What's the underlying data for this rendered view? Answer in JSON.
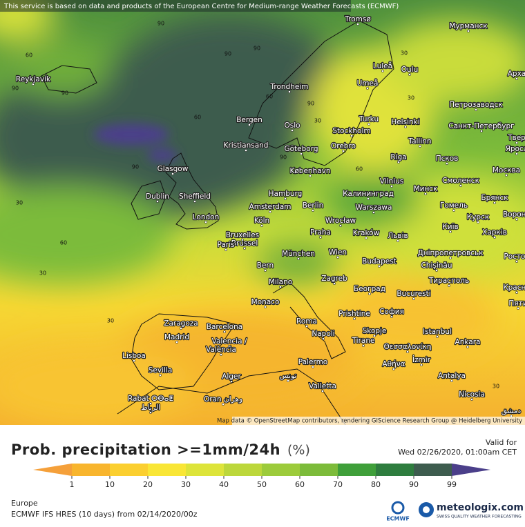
{
  "header": {
    "notice": "This service is based on data and products of the European Centre for Medium-range Weather Forecasts (ECMWF)"
  },
  "map": {
    "attribution": "Map data © OpenStreetMap contributors, rendering GIScience Research Group @ Heidelberg University",
    "cities": [
      "Reykjavík",
      "Tromsø",
      "Мурманск",
      "Luleå",
      "Oulu",
      "Арха",
      "Trondheim",
      "Umeå",
      "Bergen",
      "Oslo",
      "Turku",
      "Helsinki",
      "Петрозаводск",
      "Stockholm",
      "Санкт-Петербург",
      "Kristiansand",
      "Göteborg",
      "Orebro",
      "Tallinn",
      "Твер",
      "Яросл",
      "Glasgow",
      "København",
      "Riga",
      "Псков",
      "Москва",
      "Vilnius",
      "Минск",
      "Смоленск",
      "Dublin",
      "Sheffield",
      "Hamburg",
      "Калининград",
      "Брянск",
      "Amsterdam",
      "Berlin",
      "Warszawa",
      "Гомель",
      "Вороне",
      "London",
      "Köln",
      "Wrocław",
      "Київ",
      "Курск",
      "Bruxelles",
      "Brussel",
      "Praha",
      "Kraków",
      "Львів",
      "Харків",
      "Paris",
      "München",
      "Wien",
      "Дніпропетровськ",
      "Ростов",
      "Bern",
      "Budapest",
      "Chişinău",
      "Milano",
      "Zagreb",
      "Тирасполь",
      "Красно",
      "Београд",
      "Bucuresti",
      "Monaco",
      "Пяти",
      "Prishtine",
      "София",
      "Roma",
      "Zaragoza",
      "Barcelona",
      "Skopje",
      "Istanbul",
      "Madrid",
      "Napoli",
      "Tirane",
      "Θεσσαλονίκη",
      "Ankara",
      "Valencia /",
      "València",
      "Lisboa",
      "İzmir",
      "Αθήνα",
      "Palermo",
      "Sevilla",
      "تونس",
      "Alger",
      "Valletta",
      "Antalya",
      "Rabat ⵔⴱⴰⵟ",
      "الرباط",
      "Oran وهران",
      "Nicosia",
      "دمشق"
    ],
    "contour_labels": [
      "90",
      "90",
      "90",
      "60",
      "90",
      "90",
      "90",
      "30",
      "60",
      "30",
      "30",
      "90",
      "60",
      "90",
      "60",
      "30",
      "30",
      "60",
      "30",
      "30"
    ]
  },
  "legend": {
    "title": "Prob. precipitation >=1mm/24h",
    "unit": "(%)",
    "ticks": [
      1,
      10,
      20,
      30,
      40,
      50,
      60,
      70,
      80,
      90,
      99
    ],
    "colors": [
      "#f5a03a",
      "#f8b52d",
      "#fbcf30",
      "#f9e636",
      "#dde43a",
      "#bcd73b",
      "#9ccb3b",
      "#7cbb3a",
      "#3f9f3a",
      "#2e7d3e",
      "#3d5c4e",
      "#4b3f8a"
    ]
  },
  "info": {
    "valid_label": "Valid for",
    "valid_time": "Wed 02/26/2020, 01:00am CET",
    "region": "Europe",
    "model": "ECMWF IFS HRES (10 days) from 02/14/2020/00z",
    "ecmwf": "ECMWF",
    "brand": "meteologix.com",
    "tagline": "SWISS QUALITY WEATHER FORECASTING"
  }
}
